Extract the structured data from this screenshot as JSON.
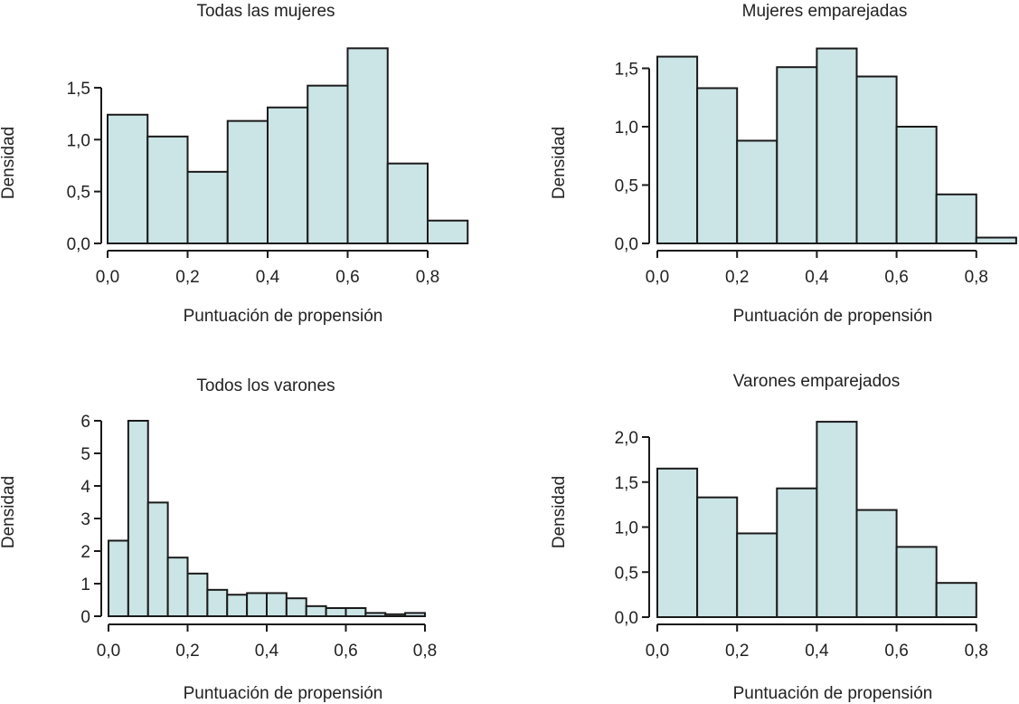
{
  "colors": {
    "bar_fill": "#cbe4e6",
    "stroke": "#1a1a1a"
  },
  "chart_data": [
    {
      "type": "bar",
      "title": "Todas las mujeres",
      "xlabel": "Puntuación de propensión",
      "ylabel": "Densidad",
      "bin_width": 0.1,
      "bin_starts": [
        0.0,
        0.1,
        0.2,
        0.3,
        0.4,
        0.5,
        0.6,
        0.7,
        0.8
      ],
      "values": [
        1.24,
        1.03,
        0.69,
        1.18,
        1.31,
        1.52,
        1.88,
        0.77,
        0.22
      ],
      "xticks": [
        0,
        0.2,
        0.4,
        0.6,
        0.8
      ],
      "xtick_labels": [
        "0,0",
        "0,2",
        "0,4",
        "0,6",
        "0,8"
      ],
      "yticks": [
        0,
        0.5,
        1.0,
        1.5
      ],
      "ytick_labels": [
        "0,0",
        "0,5",
        "1,0",
        "1,5"
      ],
      "grid": false
    },
    {
      "type": "bar",
      "title": "Mujeres emparejadas",
      "xlabel": "Puntuación de propensión",
      "ylabel": "Densidad",
      "bin_width": 0.1,
      "bin_starts": [
        0.0,
        0.1,
        0.2,
        0.3,
        0.4,
        0.5,
        0.6,
        0.7,
        0.8
      ],
      "values": [
        1.6,
        1.33,
        0.88,
        1.51,
        1.67,
        1.43,
        1.0,
        0.42,
        0.05
      ],
      "xticks": [
        0,
        0.2,
        0.4,
        0.6,
        0.8
      ],
      "xtick_labels": [
        "0,0",
        "0,2",
        "0,4",
        "0,6",
        "0,8"
      ],
      "yticks": [
        0,
        0.5,
        1.0,
        1.5
      ],
      "ytick_labels": [
        "0,0",
        "0,5",
        "1,0",
        "1,5"
      ],
      "grid": false
    },
    {
      "type": "bar",
      "title": "Todos los varones",
      "xlabel": "Puntuación de propensión",
      "ylabel": "Densidad",
      "bin_width": 0.05,
      "bin_starts": [
        0.0,
        0.05,
        0.1,
        0.15,
        0.2,
        0.25,
        0.3,
        0.35,
        0.4,
        0.45,
        0.5,
        0.55,
        0.6,
        0.65,
        0.7,
        0.75
      ],
      "values": [
        2.32,
        6.0,
        3.49,
        1.8,
        1.31,
        0.81,
        0.66,
        0.71,
        0.71,
        0.55,
        0.31,
        0.25,
        0.25,
        0.1,
        0.06,
        0.1
      ],
      "xticks": [
        0,
        0.2,
        0.4,
        0.6,
        0.8
      ],
      "xtick_labels": [
        "0,0",
        "0,2",
        "0,4",
        "0,6",
        "0,8"
      ],
      "yticks": [
        0,
        1,
        2,
        3,
        4,
        5,
        6
      ],
      "ytick_labels": [
        "0",
        "1",
        "2",
        "3",
        "4",
        "5",
        "6"
      ],
      "grid": false
    },
    {
      "type": "bar",
      "title": "Varones emparejados",
      "xlabel": "Puntuación de propensión",
      "ylabel": "Densidad",
      "bin_width": 0.1,
      "bin_starts": [
        0.0,
        0.1,
        0.2,
        0.3,
        0.4,
        0.5,
        0.6,
        0.7
      ],
      "values": [
        1.65,
        1.33,
        0.93,
        1.43,
        2.17,
        1.19,
        0.78,
        0.38
      ],
      "xticks": [
        0,
        0.2,
        0.4,
        0.6,
        0.8
      ],
      "xtick_labels": [
        "0,0",
        "0,2",
        "0,4",
        "0,6",
        "0,8"
      ],
      "yticks": [
        0,
        0.5,
        1.0,
        1.5,
        2.0
      ],
      "ytick_labels": [
        "0,0",
        "0,5",
        "1,0",
        "1,5",
        "2,0"
      ],
      "grid": false
    }
  ]
}
